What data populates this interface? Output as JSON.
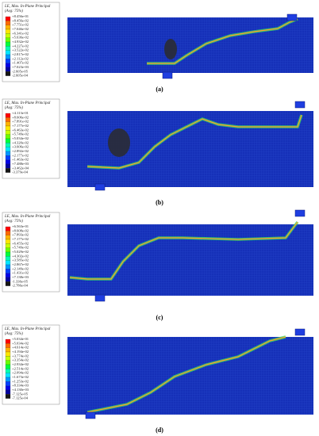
{
  "panels": [
    {
      "legend": {
        "title": "LE, Max. In-Plane Principal",
        "subtitle": "(Avg: 75%)",
        "values": [
          "+8.456e-01",
          "+8.456e-02",
          "+7.751e-02",
          "+7.046e-02",
          "+6.341e-02",
          "+5.636e-02",
          "+4.932e-02",
          "+4.227e-02",
          "+3.522e-02",
          "+2.817e-02",
          "+2.112e-02",
          "+1.407e-02",
          "+7.023e-03",
          "-2.605e-05",
          "-2.605e-04"
        ]
      },
      "caption": "(a)"
    },
    {
      "legend": {
        "title": "LE, Max. In-Plane Principal",
        "subtitle": "(Avg: 75%)",
        "values": [
          "+4.113e-01",
          "+8.606e-02",
          "+7.891e-02",
          "+7.177e-02",
          "+6.463e-02",
          "+5.749e-02",
          "+5.034e-02",
          "+4.320e-02",
          "+3.606e-02",
          "+2.892e-02",
          "+2.177e-02",
          "+1.463e-02",
          "+7.488e-03",
          "+3.462e-04",
          "-3.379e-04"
        ]
      },
      "caption": "(b)"
    },
    {
      "legend": {
        "title": "LE, Max. In-Plane Principal",
        "subtitle": "(Avg: 75%)",
        "values": [
          "+6.563e-01",
          "+8.608e-02",
          "+7.893e-02",
          "+7.177e-02",
          "+6.455e-02",
          "+5.749e-02",
          "+5.029e-02",
          "+4.302e-02",
          "+3.585e-02",
          "+2.867e-02",
          "+2.149e-02",
          "+1.431e-02",
          "+7.138e-03",
          "-1.336e-05",
          "-2.786e-04"
        ]
      },
      "caption": "(c)"
    },
    {
      "legend": {
        "title": "LE, Max. In-Plane Principal",
        "subtitle": "(Avg: 75%)",
        "values": [
          "+5.034e-01",
          "+5.034e-02",
          "+4.614e-02",
          "+4.194e-02",
          "+3.774e-02",
          "+3.354e-02",
          "+2.934e-02",
          "+2.514e-02",
          "+2.094e-02",
          "+1.673e-02",
          "+1.253e-02",
          "+8.334e-03",
          "+4.130e-03",
          "-7.125e-05",
          "-7.125e-04"
        ]
      },
      "caption": "(d)"
    }
  ]
}
